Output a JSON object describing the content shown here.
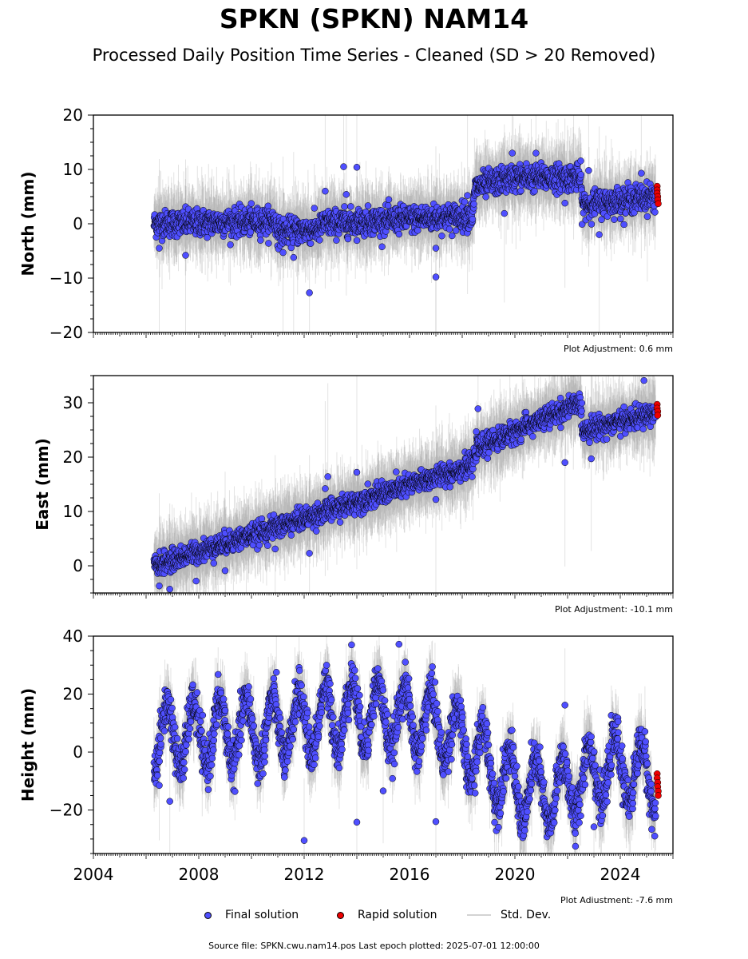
{
  "header": {
    "title": "SPKN (SPKN) NAM14",
    "subtitle": "Processed Daily Position Time Series - Cleaned (SD > 20 Removed)"
  },
  "legend": {
    "final": "Final solution",
    "rapid": "Rapid solution",
    "std": "Std. Dev."
  },
  "footer": {
    "source": "Source file: SPKN.cwu.nam14.pos  Last epoch plotted: 2025-07-01 12:00:00"
  },
  "colors": {
    "final": "#4f4fff",
    "rapid": "#ee0000",
    "std_dev": "#9a9a9a",
    "marker_edge": "#000000"
  },
  "chart_data": [
    {
      "type": "scatter",
      "ylabel": "North (mm)",
      "ylim": [
        -20,
        20
      ],
      "yticks": [
        -20,
        -10,
        0,
        10,
        20
      ],
      "xlim": [
        2004,
        2026
      ],
      "xticks": [],
      "adjustment": "Plot Adjustment: 0.6 mm",
      "series": [
        {
          "name": "Final solution",
          "trend": [
            [
              2006.3,
              0
            ],
            [
              2010.9,
              0.5
            ],
            [
              2011.0,
              -1.5
            ],
            [
              2012.6,
              -1
            ],
            [
              2012.7,
              0
            ],
            [
              2018.4,
              1.5
            ],
            [
              2018.5,
              6.8
            ],
            [
              2020.0,
              8.5
            ],
            [
              2022.5,
              8.5
            ],
            [
              2022.55,
              3.5
            ],
            [
              2025.3,
              5
            ]
          ],
          "noise": 1.6,
          "outliers": [
            [
              2006.5,
              -4.5
            ],
            [
              2007.5,
              -5.8
            ],
            [
              2011.2,
              -5.3
            ],
            [
              2011.6,
              -6.2
            ],
            [
              2012.2,
              -12.7
            ],
            [
              2012.8,
              6
            ],
            [
              2013.5,
              10.5
            ],
            [
              2013.6,
              5.4
            ],
            [
              2014.0,
              10.4
            ],
            [
              2017.0,
              -9.8
            ],
            [
              2017.0,
              -4.5
            ],
            [
              2018.2,
              5.2
            ],
            [
              2019.6,
              1.9
            ],
            [
              2019.9,
              13
            ],
            [
              2020.8,
              13
            ],
            [
              2021.9,
              3.8
            ],
            [
              2022.8,
              9.8
            ],
            [
              2023.2,
              -2
            ],
            [
              2024.8,
              9.3
            ]
          ]
        },
        {
          "name": "Rapid solution",
          "points": [
            [
              2025.4,
              6.9
            ],
            [
              2025.4,
              6.2
            ],
            [
              2025.4,
              5.6
            ],
            [
              2025.42,
              5.0
            ],
            [
              2025.42,
              4.4
            ],
            [
              2025.44,
              3.7
            ]
          ]
        }
      ]
    },
    {
      "type": "scatter",
      "ylabel": "East (mm)",
      "ylim": [
        -5,
        35
      ],
      "yticks": [
        0,
        10,
        20,
        30
      ],
      "xlim": [
        2004,
        2026
      ],
      "xticks": [],
      "adjustment": "Plot Adjustment: -10.1 mm",
      "series": [
        {
          "name": "Final solution",
          "trend": [
            [
              2006.3,
              0
            ],
            [
              2018.4,
              18.5
            ],
            [
              2018.5,
              21.5
            ],
            [
              2022.5,
              30
            ],
            [
              2022.55,
              25
            ],
            [
              2023.5,
              26
            ],
            [
              2025.3,
              28
            ]
          ],
          "noise": 1.3,
          "outliers": [
            [
              2006.5,
              -3.7
            ],
            [
              2006.9,
              -4.3
            ],
            [
              2007.9,
              -2.8
            ],
            [
              2009.0,
              -0.9
            ],
            [
              2010.9,
              3.1
            ],
            [
              2012.2,
              2.3
            ],
            [
              2012.8,
              14.2
            ],
            [
              2012.9,
              16.4
            ],
            [
              2014.0,
              17.2
            ],
            [
              2017.0,
              12.2
            ],
            [
              2018.6,
              28.9
            ],
            [
              2021.9,
              19
            ],
            [
              2022.9,
              19.7
            ],
            [
              2024.9,
              34.1
            ]
          ]
        },
        {
          "name": "Rapid solution",
          "points": [
            [
              2025.4,
              29.7
            ],
            [
              2025.4,
              29.0
            ],
            [
              2025.42,
              28.4
            ],
            [
              2025.42,
              27.7
            ]
          ]
        }
      ]
    },
    {
      "type": "scatter",
      "ylabel": "Height (mm)",
      "ylim": [
        -35,
        40
      ],
      "yticks": [
        -20,
        0,
        20,
        40
      ],
      "xlim": [
        2004,
        2026
      ],
      "xticks": [
        2004,
        2008,
        2012,
        2016,
        2020,
        2024
      ],
      "adjustment": "Plot Adjustment: -7.6 mm",
      "series": [
        {
          "name": "Final solution",
          "seasonal": {
            "amplitude": 11,
            "noise": 4.5,
            "mean": [
              [
                2006.3,
                5
              ],
              [
                2011.0,
                8
              ],
              [
                2014.0,
                14
              ],
              [
                2017.0,
                10
              ],
              [
                2018.5,
                0
              ],
              [
                2020.0,
                -12
              ],
              [
                2021.5,
                -15
              ],
              [
                2022.8,
                -8
              ],
              [
                2024.0,
                -5
              ],
              [
                2025.3,
                -10
              ]
            ]
          },
          "outliers": [
            [
              2006.5,
              -11.5
            ],
            [
              2006.9,
              -17
            ],
            [
              2012.0,
              -30.5
            ],
            [
              2014.0,
              -24.2
            ],
            [
              2015.0,
              -13.4
            ],
            [
              2017.0,
              -24
            ],
            [
              2021.9,
              16.2
            ],
            [
              2022.3,
              -32.5
            ],
            [
              2023.0,
              -25.8
            ],
            [
              2013.8,
              37
            ],
            [
              2015.6,
              37.2
            ]
          ]
        },
        {
          "name": "Rapid solution",
          "points": [
            [
              2025.4,
              -7.5
            ],
            [
              2025.4,
              -9
            ],
            [
              2025.42,
              -10.5
            ],
            [
              2025.42,
              -12
            ],
            [
              2025.44,
              -13.5
            ],
            [
              2025.44,
              -15
            ]
          ]
        }
      ]
    }
  ]
}
